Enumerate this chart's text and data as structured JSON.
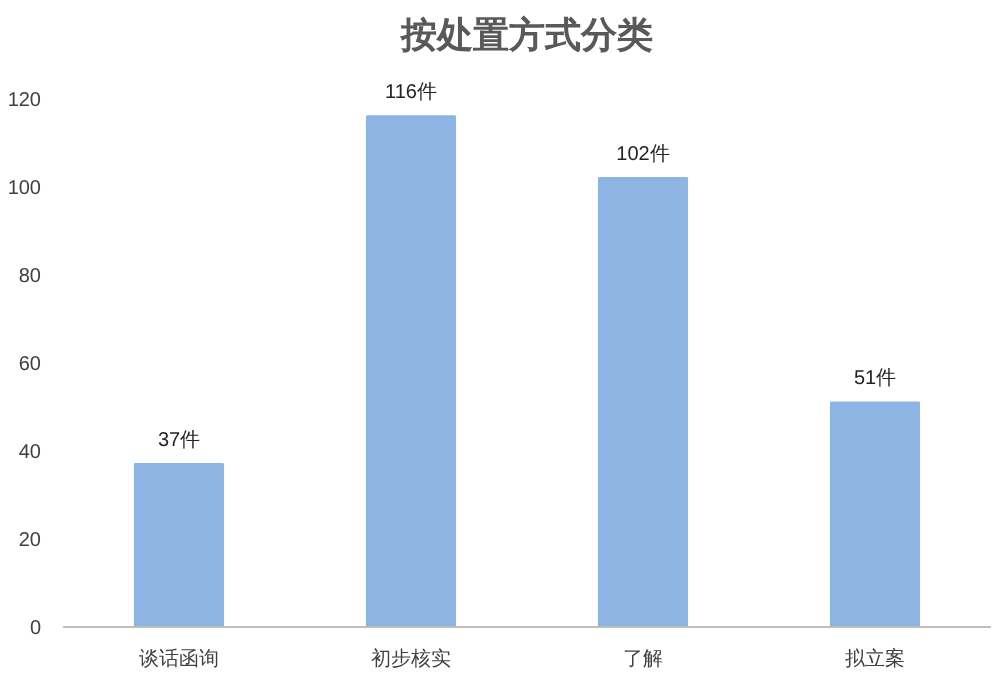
{
  "chart_data": {
    "type": "bar",
    "title": "按处置方式分类",
    "categories": [
      "谈话函询",
      "初步核实",
      "了解",
      "拟立案"
    ],
    "values": [
      37,
      116,
      102,
      51
    ],
    "value_labels": [
      "37件",
      "116件",
      "102件",
      "51件"
    ],
    "color": "#8db4e2",
    "ylim": [
      0,
      120
    ],
    "yticks": [
      0,
      20,
      40,
      60,
      80,
      100,
      120
    ],
    "grid": false
  }
}
